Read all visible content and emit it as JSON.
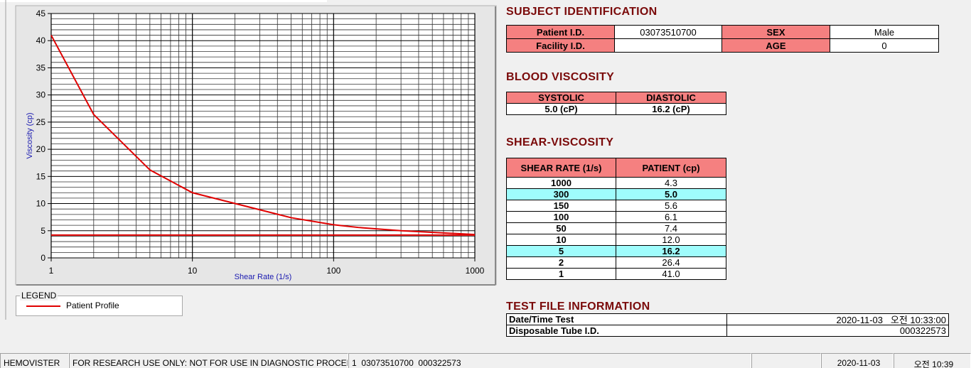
{
  "chart_data": {
    "type": "line",
    "x_label": "Shear Rate (1/s)",
    "y_label": "Viscosity (cp)",
    "log_x": true,
    "grid": true,
    "xlim": [
      1,
      1000
    ],
    "xticks": [
      1,
      10,
      100,
      1000
    ],
    "ylim": [
      0,
      45
    ],
    "yticks": [
      0,
      5,
      10,
      15,
      20,
      25,
      30,
      35,
      40,
      45
    ],
    "series": [
      {
        "name": "Patient Profile",
        "color": "#e00000",
        "x": [
          1,
          2,
          5,
          10,
          50,
          100,
          150,
          300,
          1000
        ],
        "values": [
          41.0,
          26.4,
          16.2,
          12.0,
          7.4,
          6.1,
          5.6,
          5.0,
          4.3
        ]
      },
      {
        "color": "#e00000",
        "x": [
          1,
          1000
        ],
        "values": [
          4.2,
          4.2
        ]
      }
    ]
  },
  "legend_title": "LEGEND",
  "subject": {
    "title": "SUBJECT IDENTIFICATION",
    "patient_id_label": "Patient I.D.",
    "patient_id": "03073510700",
    "sex_label": "SEX",
    "sex": "Male",
    "facility_id_label": "Facility I.D.",
    "age_label": "AGE",
    "age": "0"
  },
  "blood_viscosity": {
    "title": "BLOOD VISCOSITY",
    "headers": [
      "SYSTOLIC",
      "DIASTOLIC"
    ],
    "values": [
      "5.0 (cP)",
      "16.2 (cP)"
    ]
  },
  "shear_viscosity": {
    "title": "SHEAR-VISCOSITY",
    "headers": [
      "SHEAR RATE (1/s)",
      "PATIENT (cp)"
    ],
    "rows": [
      [
        "1000",
        "4.3"
      ],
      [
        "300",
        "5.0"
      ],
      [
        "150",
        "5.6"
      ],
      [
        "100",
        "6.1"
      ],
      [
        "50",
        "7.4"
      ],
      [
        "10",
        "12.0"
      ],
      [
        "5",
        "16.2"
      ],
      [
        "2",
        "26.4"
      ],
      [
        "1",
        "41.0"
      ]
    ],
    "highlighted_rows": [
      1,
      6
    ]
  },
  "test_file": {
    "title": "TEST FILE INFORMATION",
    "rows": [
      [
        "Date/Time Test",
        "2020-11-03   오전 10:33:00"
      ],
      [
        "Disposable Tube I.D.",
        "000322573"
      ]
    ]
  },
  "status_bar": {
    "app": "HEMOVISTER",
    "notice": "FOR RESEARCH USE ONLY: NOT FOR USE IN DIAGNOSTIC PROCEDURES",
    "file": "1  03073510700  000322573",
    "date": "2020-11-03",
    "time": "오전 10:39"
  }
}
